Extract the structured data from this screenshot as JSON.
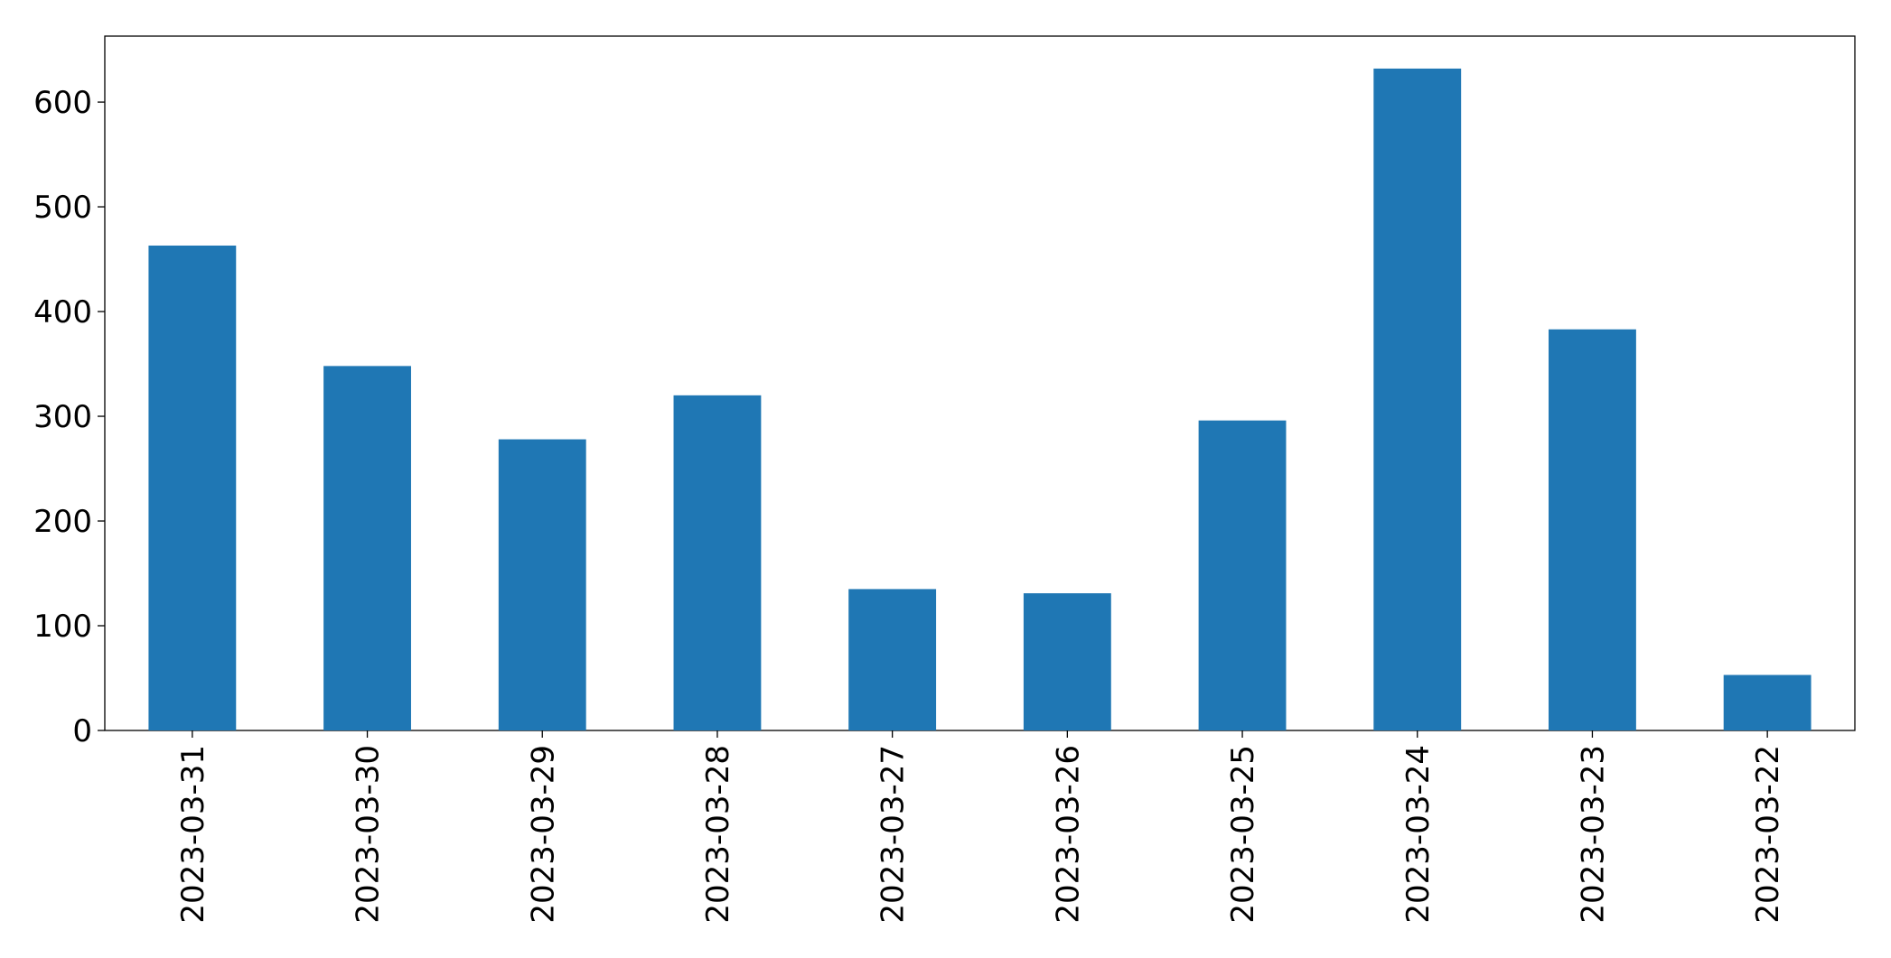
{
  "chart_data": {
    "type": "bar",
    "categories": [
      "2023-03-31",
      "2023-03-30",
      "2023-03-29",
      "2023-03-28",
      "2023-03-27",
      "2023-03-26",
      "2023-03-25",
      "2023-03-24",
      "2023-03-23",
      "2023-03-22"
    ],
    "values": [
      463,
      348,
      278,
      320,
      135,
      131,
      296,
      632,
      383,
      53
    ],
    "color": "#1f77b4",
    "ylim": [
      0,
      663
    ],
    "yticks": [
      0,
      100,
      200,
      300,
      400,
      500,
      600
    ],
    "grid": false
  }
}
